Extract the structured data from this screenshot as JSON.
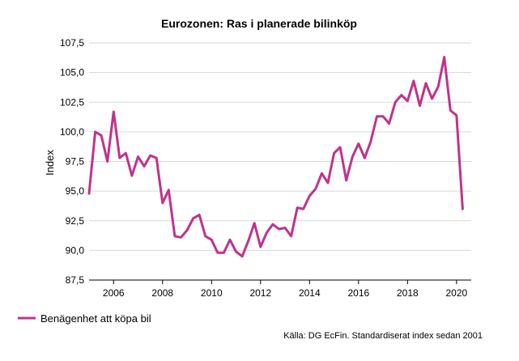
{
  "chart_data": {
    "type": "line",
    "title": "Eurozonen: Ras i planerade bilinköp",
    "xlabel": "",
    "ylabel": "Index",
    "ylim": [
      87.5,
      107.5
    ],
    "yticks": [
      "87,5",
      "90,0",
      "92,5",
      "95,0",
      "97,5",
      "100,0",
      "102,5",
      "105,0",
      "107,5"
    ],
    "ytick_values": [
      87.5,
      90.0,
      92.5,
      95.0,
      97.5,
      100.0,
      102.5,
      105.0,
      107.5
    ],
    "xticks": [
      "2006",
      "2008",
      "2010",
      "2012",
      "2014",
      "2016",
      "2018",
      "2020"
    ],
    "xtick_values": [
      2006,
      2008,
      2010,
      2012,
      2014,
      2016,
      2018,
      2020
    ],
    "xlim": [
      2005.0,
      2020.6
    ],
    "grid": true,
    "legend_position": "bottom-left",
    "line_color": "#c0338b",
    "source": "Källa: DG EcFin. Standardiserat index sedan 2001",
    "series": [
      {
        "name": "Benägenhet att köpa bil",
        "x": [
          2005.0,
          2005.25,
          2005.5,
          2005.75,
          2006.0,
          2006.25,
          2006.5,
          2006.75,
          2007.0,
          2007.25,
          2007.5,
          2007.75,
          2008.0,
          2008.25,
          2008.5,
          2008.75,
          2009.0,
          2009.25,
          2009.5,
          2009.75,
          2010.0,
          2010.25,
          2010.5,
          2010.75,
          2011.0,
          2011.25,
          2011.5,
          2011.75,
          2012.0,
          2012.25,
          2012.5,
          2012.75,
          2013.0,
          2013.25,
          2013.5,
          2013.75,
          2014.0,
          2014.25,
          2014.5,
          2014.75,
          2015.0,
          2015.25,
          2015.5,
          2015.75,
          2016.0,
          2016.25,
          2016.5,
          2016.75,
          2017.0,
          2017.25,
          2017.5,
          2017.75,
          2018.0,
          2018.25,
          2018.5,
          2018.75,
          2019.0,
          2019.25,
          2019.5,
          2019.75,
          2020.0,
          2020.25
        ],
        "values": [
          94.8,
          100.0,
          99.7,
          97.5,
          101.7,
          97.8,
          98.2,
          96.3,
          97.9,
          97.1,
          98.0,
          97.8,
          94.0,
          95.1,
          91.2,
          91.1,
          91.7,
          92.7,
          93.0,
          91.2,
          90.9,
          89.8,
          89.8,
          90.9,
          89.9,
          89.5,
          90.8,
          92.3,
          90.3,
          91.5,
          92.2,
          91.8,
          91.9,
          91.2,
          93.6,
          93.5,
          94.6,
          95.2,
          96.5,
          95.7,
          98.2,
          98.7,
          95.9,
          97.9,
          99.0,
          97.8,
          99.2,
          101.3,
          101.3,
          100.7,
          102.5,
          103.1,
          102.6,
          104.3,
          102.2,
          104.1,
          102.8,
          103.8,
          106.3,
          101.8,
          101.4,
          93.5
        ]
      }
    ]
  }
}
